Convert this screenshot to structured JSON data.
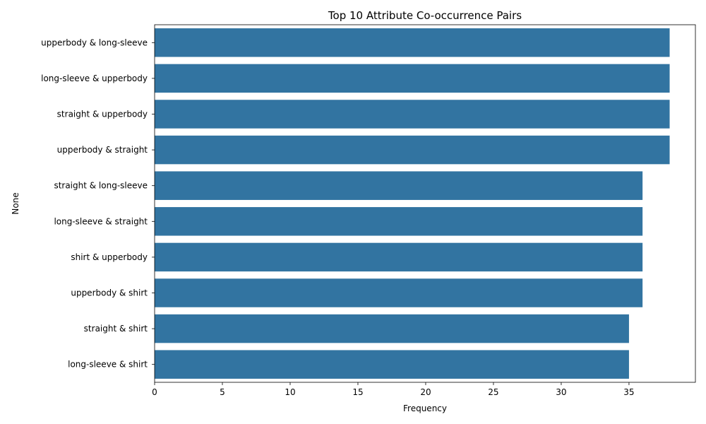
{
  "chart_data": {
    "type": "bar",
    "orientation": "horizontal",
    "title": "Top 10 Attribute Co-occurrence Pairs",
    "xlabel": "Frequency",
    "ylabel": "None",
    "categories": [
      "upperbody & long-sleeve",
      "long-sleeve & upperbody",
      "straight & upperbody",
      "upperbody & straight",
      "straight & long-sleeve",
      "long-sleeve & straight",
      "shirt & upperbody",
      "upperbody & shirt",
      "straight & shirt",
      "long-sleeve & shirt"
    ],
    "values": [
      38,
      38,
      38,
      38,
      36,
      36,
      36,
      36,
      35,
      35
    ],
    "xlim": [
      0,
      40
    ],
    "xticks": [
      0,
      5,
      10,
      15,
      20,
      25,
      30,
      35
    ],
    "grid": false,
    "bar_color": "#3274a1"
  }
}
